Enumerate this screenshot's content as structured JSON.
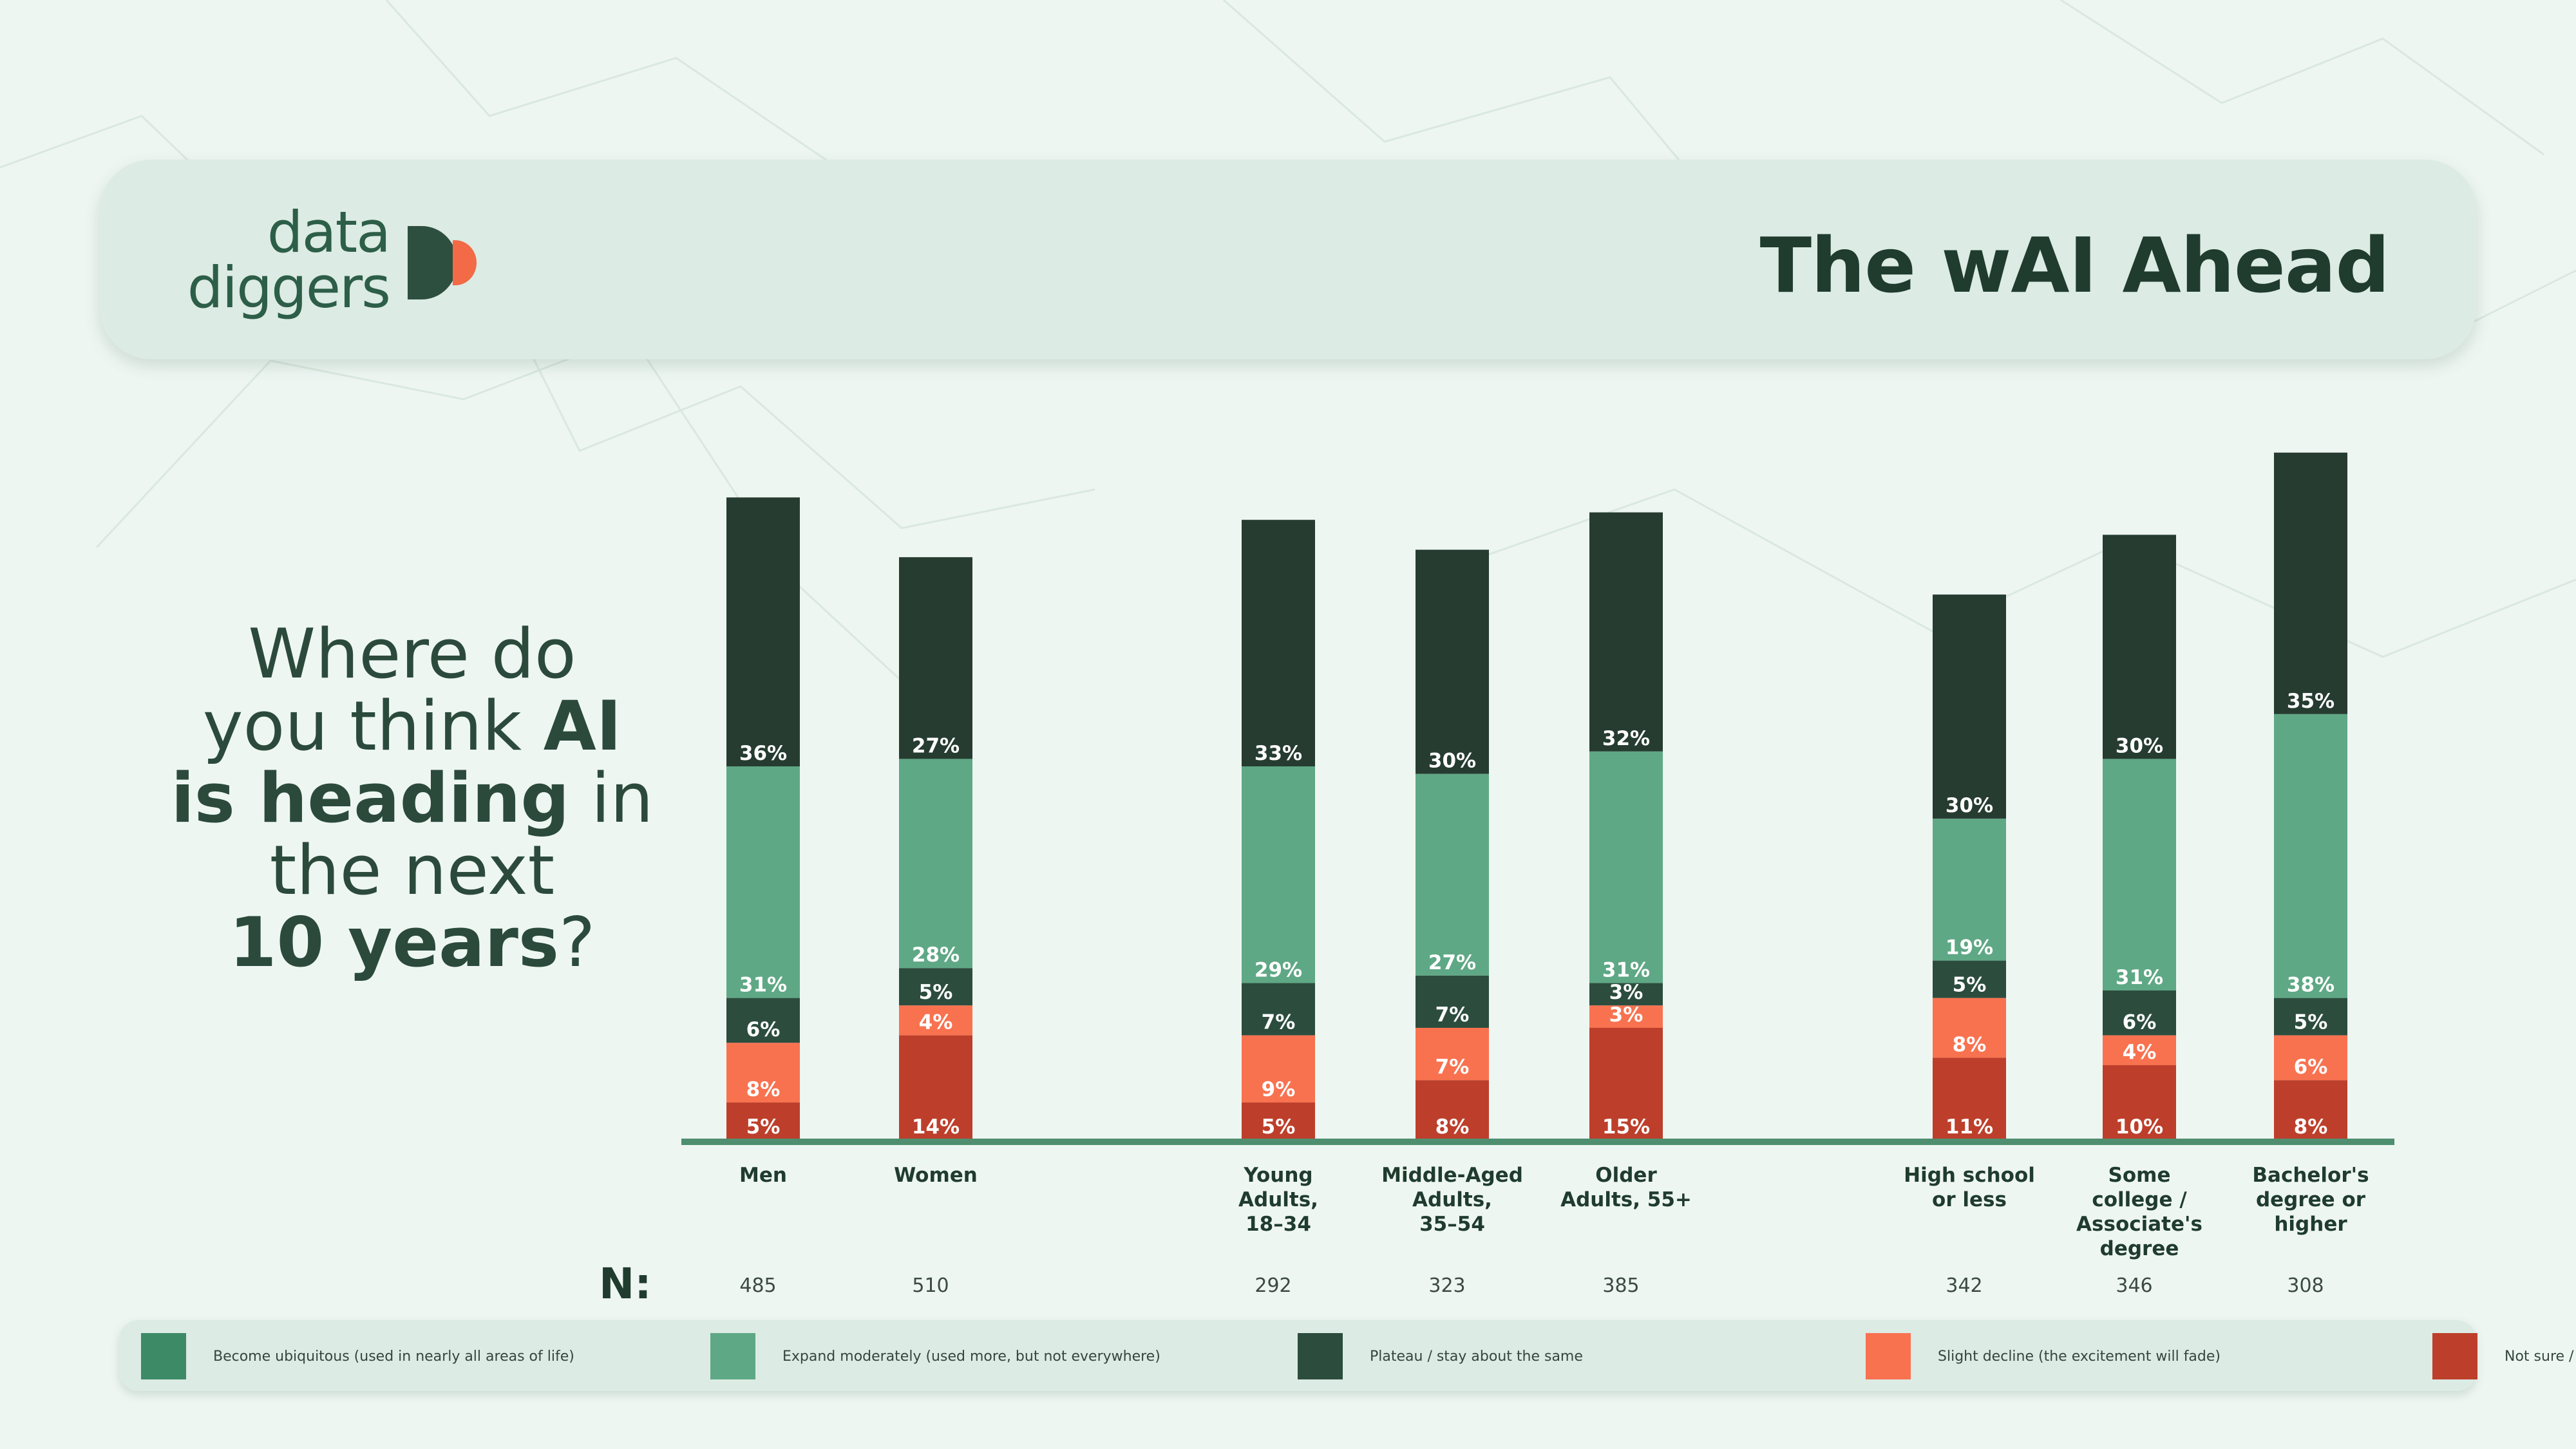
{
  "header": {
    "logo_line1": "data",
    "logo_line2": "diggers",
    "title": "The wAI Ahead"
  },
  "question": {
    "parts": [
      {
        "text": "Where do",
        "bold": false,
        "br": true
      },
      {
        "text": "you think ",
        "bold": false,
        "br": false
      },
      {
        "text": "AI",
        "bold": true,
        "br": true
      },
      {
        "text": "is heading",
        "bold": true,
        "br": false
      },
      {
        "text": " in",
        "bold": false,
        "br": true
      },
      {
        "text": "the next",
        "bold": false,
        "br": true
      },
      {
        "text": "10 years",
        "bold": true,
        "br": false
      },
      {
        "text": "?",
        "bold": false,
        "br": false
      }
    ]
  },
  "n_label": "N:",
  "colors": {
    "ubiquitous": "#3d8a66",
    "moderate": "#5fa885",
    "plateau": "#2c4d3e",
    "decline": "#f87250",
    "notsure": "#bd3f2b",
    "axis": "#4f8f70",
    "top": "#263c31"
  },
  "legend": [
    {
      "key": "ubiquitous",
      "label": "Become ubiquitous (used in nearly all areas of life)"
    },
    {
      "key": "moderate",
      "label": "Expand moderately (used more, but not everywhere)"
    },
    {
      "key": "plateau",
      "label": "Plateau / stay about the same"
    },
    {
      "key": "decline",
      "label": "Slight decline (the excitement will fade)"
    },
    {
      "key": "notsure",
      "label": "Not sure / Don't know"
    }
  ],
  "chart_data": {
    "type": "bar",
    "stacked": true,
    "grid": false,
    "legend_position": "bottom",
    "categories": [
      {
        "label": [
          "Men"
        ],
        "n": "485"
      },
      {
        "label": [
          "Women"
        ],
        "n": "510"
      },
      {
        "label": [
          "Young",
          "Adults,",
          "18–34"
        ],
        "n": "292"
      },
      {
        "label": [
          "Middle-Aged",
          "Adults,",
          "35–54"
        ],
        "n": "323"
      },
      {
        "label": [
          "Older",
          "Adults, 55+"
        ],
        "n": "385"
      },
      {
        "label": [
          "High school",
          "or less"
        ],
        "n": "342"
      },
      {
        "label": [
          "Some",
          "college /",
          "Associate's",
          "degree"
        ],
        "n": "346"
      },
      {
        "label": [
          "Bachelor's",
          "degree or",
          "higher"
        ],
        "n": "308"
      }
    ],
    "series": [
      {
        "name": "Not sure / Don't know",
        "key": "notsure",
        "values": [
          5,
          14,
          5,
          8,
          15,
          11,
          10,
          8
        ]
      },
      {
        "name": "Slight decline (the excitement will fade)",
        "key": "decline",
        "values": [
          8,
          4,
          9,
          7,
          3,
          8,
          4,
          6
        ]
      },
      {
        "name": "Plateau / stay about the same",
        "key": "plateau",
        "values": [
          6,
          5,
          7,
          7,
          3,
          5,
          6,
          5
        ]
      },
      {
        "name": "Expand moderately (used more, but not everywhere)",
        "key": "moderate",
        "values": [
          31,
          28,
          29,
          27,
          31,
          19,
          31,
          38
        ]
      },
      {
        "name": "Become ubiquitous (used in nearly all areas of life)",
        "key": "ubiquitous",
        "values": [
          36,
          27,
          33,
          30,
          32,
          30,
          30,
          35
        ]
      }
    ],
    "value_suffix": "%"
  }
}
